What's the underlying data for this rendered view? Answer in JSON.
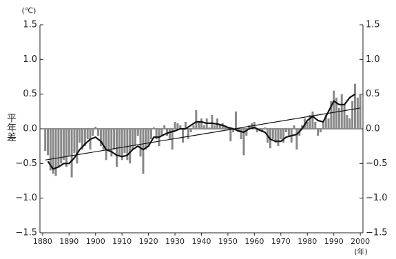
{
  "chart_data": {
    "type": "bar",
    "unit_label": "(℃)",
    "x_unit_label": "(年)",
    "y_label": "平年差",
    "color": "#888888",
    "x": [
      1881,
      1882,
      1883,
      1884,
      1885,
      1886,
      1887,
      1888,
      1889,
      1890,
      1891,
      1892,
      1893,
      1894,
      1895,
      1896,
      1897,
      1898,
      1899,
      1900,
      1901,
      1902,
      1903,
      1904,
      1905,
      1906,
      1907,
      1908,
      1909,
      1910,
      1911,
      1912,
      1913,
      1914,
      1915,
      1916,
      1917,
      1918,
      1919,
      1920,
      1921,
      1922,
      1923,
      1924,
      1925,
      1926,
      1927,
      1928,
      1929,
      1930,
      1931,
      1932,
      1933,
      1934,
      1935,
      1936,
      1937,
      1938,
      1939,
      1940,
      1941,
      1942,
      1943,
      1944,
      1945,
      1946,
      1947,
      1948,
      1949,
      1950,
      1951,
      1952,
      1953,
      1954,
      1955,
      1956,
      1957,
      1958,
      1959,
      1960,
      1961,
      1962,
      1963,
      1964,
      1965,
      1966,
      1967,
      1968,
      1969,
      1970,
      1971,
      1972,
      1973,
      1974,
      1975,
      1976,
      1977,
      1978,
      1979,
      1980,
      1981,
      1982,
      1983,
      1984,
      1985,
      1986,
      1987,
      1988,
      1989,
      1990,
      1991,
      1992,
      1993,
      1994,
      1995,
      1996,
      1997,
      1998,
      1999,
      2000
    ],
    "values": [
      -0.32,
      -0.38,
      -0.6,
      -0.65,
      -0.68,
      -0.55,
      -0.5,
      -0.45,
      -0.55,
      -0.4,
      -0.7,
      -0.35,
      -0.5,
      -0.2,
      -0.3,
      -0.25,
      -0.15,
      -0.3,
      -0.1,
      0.03,
      -0.1,
      -0.25,
      -0.3,
      -0.45,
      -0.3,
      -0.4,
      -0.3,
      -0.55,
      -0.4,
      -0.45,
      -0.35,
      -0.45,
      -0.5,
      -0.3,
      -0.25,
      -0.1,
      -0.4,
      -0.65,
      -0.3,
      -0.25,
      -0.15,
      0.02,
      -0.15,
      -0.25,
      -0.1,
      0.05,
      -0.1,
      -0.15,
      -0.3,
      0.1,
      0.08,
      0.05,
      -0.2,
      0.1,
      -0.15,
      -0.05,
      0.05,
      0.27,
      0.1,
      0.15,
      0.05,
      0.15,
      0.02,
      0.2,
      0.05,
      0.15,
      0.05,
      0.08,
      0.05,
      0.02,
      -0.18,
      -0.05,
      0.25,
      -0.05,
      -0.15,
      -0.38,
      -0.1,
      0.05,
      0.08,
      0.1,
      -0.05,
      -0.02,
      -0.05,
      0.02,
      -0.2,
      -0.28,
      -0.15,
      -0.2,
      -0.25,
      -0.15,
      -0.2,
      -0.05,
      -0.1,
      -0.2,
      0.05,
      -0.3,
      -0.1,
      0.05,
      0.15,
      0.1,
      0.2,
      0.25,
      0.1,
      -0.1,
      -0.05,
      0.1,
      0.2,
      0.15,
      0.4,
      0.55,
      0.45,
      0.3,
      0.5,
      0.35,
      0.2,
      0.15,
      0.4,
      0.65,
      0.45,
      0.5
    ],
    "smooth": {
      "color": "#111111",
      "x": [
        1882,
        1884,
        1886,
        1888,
        1890,
        1892,
        1894,
        1896,
        1898,
        1900,
        1902,
        1904,
        1906,
        1908,
        1910,
        1912,
        1914,
        1916,
        1918,
        1920,
        1922,
        1924,
        1926,
        1928,
        1930,
        1932,
        1934,
        1936,
        1938,
        1940,
        1942,
        1944,
        1946,
        1948,
        1950,
        1952,
        1954,
        1956,
        1958,
        1960,
        1962,
        1964,
        1966,
        1968,
        1970,
        1972,
        1974,
        1976,
        1978,
        1980,
        1982,
        1984,
        1986,
        1988,
        1990,
        1992,
        1994,
        1996,
        1998
      ],
      "values": [
        -0.47,
        -0.58,
        -0.55,
        -0.5,
        -0.5,
        -0.42,
        -0.3,
        -0.22,
        -0.15,
        -0.12,
        -0.18,
        -0.3,
        -0.33,
        -0.38,
        -0.4,
        -0.38,
        -0.3,
        -0.25,
        -0.3,
        -0.25,
        -0.12,
        -0.12,
        -0.08,
        -0.05,
        -0.03,
        0.0,
        0.0,
        0.05,
        0.1,
        0.1,
        0.08,
        0.08,
        0.07,
        0.05,
        0.02,
        0.0,
        -0.03,
        -0.05,
        0.0,
        0.02,
        -0.02,
        -0.05,
        -0.15,
        -0.18,
        -0.18,
        -0.12,
        -0.1,
        -0.08,
        0.0,
        0.12,
        0.18,
        0.12,
        0.1,
        0.25,
        0.4,
        0.35,
        0.35,
        0.45,
        0.5
      ]
    },
    "trend": {
      "color": "#111111",
      "x": [
        1881,
        2000
      ],
      "values": [
        -0.45,
        0.3
      ]
    },
    "xlim": [
      1879,
      2001
    ],
    "xticks": [
      1880,
      1890,
      1900,
      1910,
      1920,
      1930,
      1940,
      1950,
      1960,
      1970,
      1980,
      1990,
      2000
    ],
    "ylim": [
      -1.5,
      1.5
    ],
    "yticks": [
      {
        "value": -1.5,
        "label": "−1.5"
      },
      {
        "value": -1,
        "label": "−1.0"
      },
      {
        "value": -0.5,
        "label": "−0.5"
      },
      {
        "value": 0,
        "label": "0.0"
      },
      0.5,
      {
        "value": 1,
        "label": "1.0"
      },
      1.5
    ]
  }
}
